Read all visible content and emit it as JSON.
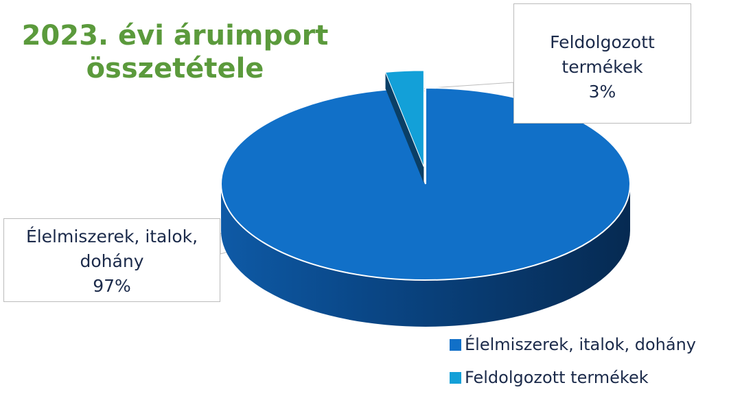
{
  "chart_data": {
    "type": "pie",
    "title": "2023. évi áruimport összetétele",
    "categories": [
      "Élelmiszerek, italok, dohány",
      "Feldolgozott termékek"
    ],
    "values": [
      97,
      3
    ],
    "value_labels": [
      "97%",
      "3%"
    ],
    "colors": [
      "#1170c8",
      "#13a0d8"
    ],
    "legend": "bottom-right"
  }
}
